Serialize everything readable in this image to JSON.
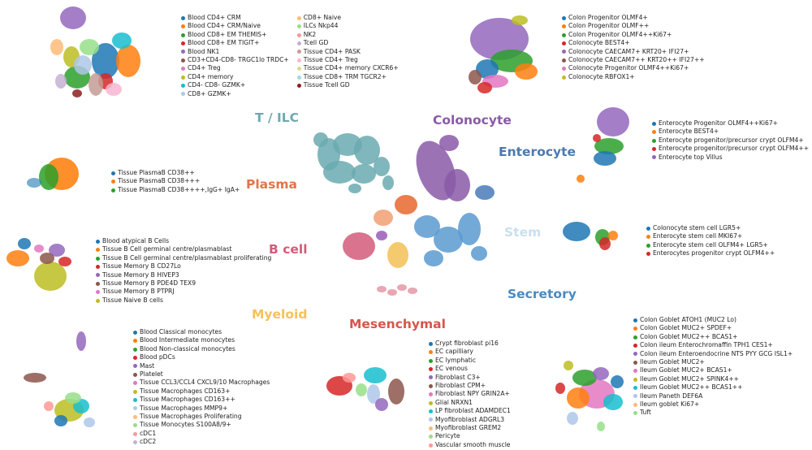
{
  "chart_data": {
    "type": "scatter",
    "groups": [
      {
        "key": "tilc",
        "name": "T / ILC",
        "color": "#6aaab0"
      },
      {
        "key": "colonocyte",
        "name": "Colonocyte",
        "color": "#8a5aa8"
      },
      {
        "key": "enterocyte",
        "name": "Enterocyte",
        "color": "#4a7ab0"
      },
      {
        "key": "plasma",
        "name": "Plasma",
        "color": "#e2744a"
      },
      {
        "key": "bcell",
        "name": "B cell",
        "color": "#d45a7a"
      },
      {
        "key": "stem",
        "name": "Stem",
        "color": "#c8e0ee"
      },
      {
        "key": "myeloid",
        "name": "Myeloid",
        "color": "#f4c25a"
      },
      {
        "key": "secretory",
        "name": "Secretory",
        "color": "#4a8ac0"
      },
      {
        "key": "mesenchymal",
        "name": "Mesenchymal",
        "color": "#d8544a"
      }
    ],
    "legends": {
      "tilc": [
        {
          "label": "Blood CD4+ CRM",
          "color": "#1f77b4"
        },
        {
          "label": "Blood CD4+ CRM/Naive",
          "color": "#ff7f0e"
        },
        {
          "label": "Blood CD8+ EM THEMIS+",
          "color": "#2ca02c"
        },
        {
          "label": "Blood CD8+ EM TIGIT+",
          "color": "#d62728"
        },
        {
          "label": "Blood NK1",
          "color": "#9467bd"
        },
        {
          "label": "CD3+CD4-CD8- TRGC1lo TRDC+",
          "color": "#8c564b"
        },
        {
          "label": "CD4+ Treg",
          "color": "#e377c2"
        },
        {
          "label": "CD4+ memory",
          "color": "#bcbd22"
        },
        {
          "label": "CD4- CD8- GZMK+",
          "color": "#17becf"
        },
        {
          "label": "CD8+ GZMK+",
          "color": "#aec7e8"
        },
        {
          "label": "CD8+ Naive",
          "color": "#ffbb78"
        },
        {
          "label": "ILCs Nkp44",
          "color": "#98df8a"
        },
        {
          "label": "NK2",
          "color": "#ff9896"
        },
        {
          "label": "Tcell GD",
          "color": "#c5b0d5"
        },
        {
          "label": "Tissue CD4+ PASK",
          "color": "#c49c94"
        },
        {
          "label": "Tissue CD4+ Treg",
          "color": "#f7b6d2"
        },
        {
          "label": "Tissue CD4+ memory CXCR6+",
          "color": "#dbdb8d"
        },
        {
          "label": "Tissue CD8+ TRM TGCR2+",
          "color": "#9edae5"
        },
        {
          "label": "Tissue Tcell GD",
          "color": "#8b2020"
        }
      ],
      "colonocyte": [
        {
          "label": "Colon Progenitor OLMF4+",
          "color": "#1f77b4"
        },
        {
          "label": "Colon Progenitor OLMF++",
          "color": "#ff7f0e"
        },
        {
          "label": "Colon Progenitor OLMF4++Ki67+",
          "color": "#2ca02c"
        },
        {
          "label": "Colonocyte BEST4+",
          "color": "#d62728"
        },
        {
          "label": "Colonocyte CAECAM7+ KRT20+ IFI27+",
          "color": "#9467bd"
        },
        {
          "label": "Colonocyte CAECAM7++ KRT20++ IFI27++",
          "color": "#8c564b"
        },
        {
          "label": "Colonocyte Progenitor OLMF4++Ki67+",
          "color": "#e377c2"
        },
        {
          "label": "Colonocyte RBFOX1+",
          "color": "#bcbd22"
        }
      ],
      "enterocyte": [
        {
          "label": "Enterocyte  Progenitor OLMF4++Ki67+",
          "color": "#1f77b4"
        },
        {
          "label": "Enterocyte BEST4+",
          "color": "#ff7f0e"
        },
        {
          "label": "Enterocyte progenitor/precursor crypt OLFM4+",
          "color": "#2ca02c"
        },
        {
          "label": "Enterocyte progenitor/precursor crypt OLFM4++",
          "color": "#d62728"
        },
        {
          "label": "Enterocyte top Villus",
          "color": "#9467bd"
        }
      ],
      "plasma": [
        {
          "label": "Tissue PlasmaB CD38++",
          "color": "#1f77b4"
        },
        {
          "label": "Tissue PlasmaB CD38+++",
          "color": "#ff7f0e"
        },
        {
          "label": "Tissue PlasmaB CD38++++,IgG+ IgA+",
          "color": "#2ca02c"
        }
      ],
      "stem": [
        {
          "label": "Colonocyte stem cell  LGR5+",
          "color": "#1f77b4"
        },
        {
          "label": "Enterocyte stem cell MKI67+",
          "color": "#ff7f0e"
        },
        {
          "label": "Enterocyte stem cell OLFM4+ LGR5+",
          "color": "#2ca02c"
        },
        {
          "label": "Enterocytes progenitor crypt OLFM4++",
          "color": "#d62728"
        }
      ],
      "bcell": [
        {
          "label": "Blood atypical B Cells",
          "color": "#1f77b4"
        },
        {
          "label": "Tissue B Cell germinal centre/plasmablast",
          "color": "#ff7f0e"
        },
        {
          "label": "Tissue B Cell germinal centre/plasmablast proliferating",
          "color": "#2ca02c"
        },
        {
          "label": "Tissue Memory B CD27Lo",
          "color": "#d62728"
        },
        {
          "label": "Tissue Memory B HIVEP3",
          "color": "#9467bd"
        },
        {
          "label": "Tissue Memory B PDE4D TEX9",
          "color": "#8c564b"
        },
        {
          "label": "Tissue Memory B PTPRJ",
          "color": "#e377c2"
        },
        {
          "label": "Tissue Naive B cells",
          "color": "#bcbd22"
        }
      ],
      "myeloid": [
        {
          "label": "Blood Classical monocytes",
          "color": "#1f77b4"
        },
        {
          "label": "Blood Intermediate monocytes",
          "color": "#ff7f0e"
        },
        {
          "label": "Blood Non-classical monocytes",
          "color": "#2ca02c"
        },
        {
          "label": "Blood pDCs",
          "color": "#d62728"
        },
        {
          "label": "Mast",
          "color": "#9467bd"
        },
        {
          "label": "Platelet",
          "color": "#8c564b"
        },
        {
          "label": "Tissue CCL3/CCL4 CXCL9/10 Macrophages",
          "color": "#e377c2"
        },
        {
          "label": "Tissue Macrophages CD163+",
          "color": "#bcbd22"
        },
        {
          "label": "Tissue Macrophages CD163++",
          "color": "#17becf"
        },
        {
          "label": "Tissue Macrophages MMP9+",
          "color": "#aec7e8"
        },
        {
          "label": "Tissue Macrophages Proliferating",
          "color": "#ffbb78"
        },
        {
          "label": "Tissue Monocytes S100A8/9+",
          "color": "#98df8a"
        },
        {
          "label": "cDC1",
          "color": "#ff9896"
        },
        {
          "label": "cDC2",
          "color": "#c5b0d5"
        }
      ],
      "mesenchymal": [
        {
          "label": "Crypt fibroblast pi16",
          "color": "#1f77b4"
        },
        {
          "label": "EC capilliary",
          "color": "#ff7f0e"
        },
        {
          "label": "EC lymphatic",
          "color": "#2ca02c"
        },
        {
          "label": "EC venous",
          "color": "#d62728"
        },
        {
          "label": "Fibroblast C3+",
          "color": "#9467bd"
        },
        {
          "label": "Fibroblast CPM+",
          "color": "#8c564b"
        },
        {
          "label": "Fibroblast NPY GRIN2A+",
          "color": "#e377c2"
        },
        {
          "label": "Glial NRXN1",
          "color": "#bcbd22"
        },
        {
          "label": "LP fibroblast ADAMDEC1",
          "color": "#17becf"
        },
        {
          "label": "Myofibroblast ADGRL3",
          "color": "#aec7e8"
        },
        {
          "label": "Myofibroblast GREM2",
          "color": "#ffbb78"
        },
        {
          "label": "Pericyte",
          "color": "#98df8a"
        },
        {
          "label": "Vascular smooth muscle",
          "color": "#ff9896"
        }
      ],
      "secretory": [
        {
          "label": "Colon Goblet ATOH1 (MUC2 Lo)",
          "color": "#1f77b4"
        },
        {
          "label": "Colon Goblet MUC2+ SPDEF+",
          "color": "#ff7f0e"
        },
        {
          "label": "Colon Goblet MUC2++ BCAS1+",
          "color": "#2ca02c"
        },
        {
          "label": "Colon ileum Enterochromaffin TPH1 CES1+",
          "color": "#d62728"
        },
        {
          "label": "Colon ileum Enteroendocrine NTS PYY GCG ISL1+",
          "color": "#9467bd"
        },
        {
          "label": "Ileum Goblet MUC2+",
          "color": "#8c564b"
        },
        {
          "label": "Ileum Goblet MUC2+ BCAS1+",
          "color": "#e377c2"
        },
        {
          "label": "Ileum Goblet MUC2+ SPINK4++",
          "color": "#bcbd22"
        },
        {
          "label": "Ileum Goblet MUC2++ BCAS1++",
          "color": "#17becf"
        },
        {
          "label": "Ileum Paneth DEF6A",
          "color": "#aec7e8"
        },
        {
          "label": "Ileum goblet Ki67+",
          "color": "#ffbb78"
        },
        {
          "label": "Tuft",
          "color": "#98df8a"
        }
      ]
    }
  }
}
